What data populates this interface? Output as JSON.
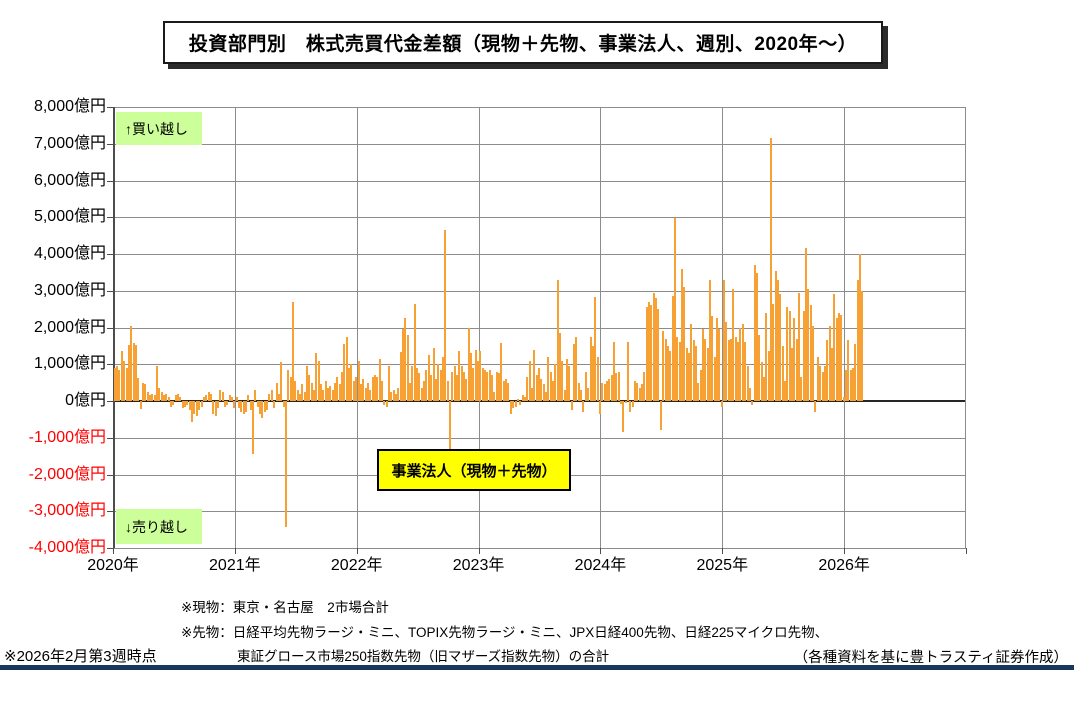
{
  "title": "投資部門別　株式売買代金差額（現物＋先物、事業法人、週別、2020年～）",
  "annotations": {
    "buy_label": "↑買い越し",
    "sell_label": "↓売り越し",
    "series_box_label": "事業法人（現物＋先物）"
  },
  "footnotes": {
    "note1": "※現物：東京・名古屋　2市場合計",
    "note2": "※先物：日経平均先物ラージ・ミニ、TOPIX先物ラージ・ミニ、JPX日経400先物、日経225マイクロ先物、",
    "note3": "東証グロース市場250指数先物（旧マザーズ指数先物）の合計",
    "as_of": "※2026年2月第3週時点",
    "credit": "（各種資料を基に豊トラスティ証券作成）"
  },
  "colors": {
    "bar": "#f7a134",
    "grid": "#8c8c8c",
    "zero_line": "#262626",
    "positive_tick": "#000000",
    "negative_tick": "#ff0000",
    "annotation_bg": "#ccff99",
    "series_box_bg": "#ffff00",
    "footer_rule": "#17375e"
  },
  "chart_data": {
    "type": "bar",
    "title": "投資部門別　株式売買代金差額（現物＋先物、事業法人、週別、2020年～）",
    "unit": "億円",
    "xlabel": "",
    "ylabel": "",
    "ylim": [
      -4000,
      8000
    ],
    "ytick_step": 1000,
    "grid": true,
    "ytick_labels": [
      "8,000億円",
      "7,000億円",
      "6,000億円",
      "5,000億円",
      "4,000億円",
      "3,000億円",
      "2,000億円",
      "1,000億円",
      "0億円",
      "-1,000億円",
      "-2,000億円",
      "-3,000億円",
      "-4,000億円"
    ],
    "x_year_labels": [
      "2020年",
      "2021年",
      "2022年",
      "2023年",
      "2024年",
      "2025年",
      "2026年"
    ],
    "weeks_per_year": 52,
    "series": [
      {
        "name": "事業法人（現物＋先物）",
        "values": [
          900,
          950,
          850,
          1350,
          1100,
          900,
          1520,
          2050,
          1590,
          1520,
          630,
          -230,
          500,
          460,
          250,
          150,
          200,
          150,
          950,
          350,
          250,
          150,
          200,
          100,
          -150,
          -100,
          150,
          200,
          100,
          -200,
          -150,
          -100,
          -250,
          -570,
          -350,
          -400,
          -250,
          -150,
          100,
          150,
          250,
          200,
          -350,
          -420,
          -200,
          300,
          250,
          -150,
          -100,
          150,
          100,
          -200,
          100,
          -200,
          -300,
          -350,
          -300,
          150,
          -250,
          -1450,
          300,
          -150,
          -350,
          -450,
          -300,
          -250,
          200,
          300,
          -200,
          500,
          200,
          1050,
          -150,
          -3430,
          850,
          650,
          2690,
          550,
          300,
          200,
          450,
          250,
          950,
          700,
          500,
          300,
          1300,
          1100,
          450,
          300,
          550,
          350,
          400,
          300,
          500,
          650,
          450,
          800,
          1550,
          1750,
          900,
          1000,
          550,
          650,
          1100,
          450,
          600,
          350,
          500,
          300,
          650,
          700,
          650,
          1150,
          550,
          -100,
          -150,
          950,
          250,
          300,
          200,
          350,
          1320,
          1950,
          2250,
          1800,
          500,
          950,
          2650,
          900,
          750,
          350,
          550,
          850,
          1250,
          700,
          1450,
          600,
          1000,
          850,
          1200,
          4650,
          550,
          -1350,
          800,
          950,
          700,
          1350,
          950,
          800,
          600,
          2000,
          1300,
          900,
          1400,
          1100,
          1350,
          900,
          850,
          800,
          850,
          700,
          250,
          800,
          750,
          1590,
          550,
          600,
          500,
          -350,
          -200,
          -150,
          50,
          -100,
          150,
          100,
          650,
          1100,
          350,
          1400,
          700,
          900,
          600,
          450,
          250,
          1200,
          800,
          550,
          1000,
          3300,
          1850,
          1100,
          300,
          1150,
          950,
          -250,
          1550,
          1750,
          500,
          300,
          -300,
          800,
          350,
          1750,
          1500,
          2830,
          1200,
          -350,
          500,
          450,
          550,
          600,
          700,
          1600,
          750,
          800,
          -80,
          -850,
          -50,
          1600,
          -300,
          -150,
          550,
          500,
          350,
          450,
          800,
          2550,
          2700,
          2600,
          2950,
          2800,
          2500,
          -800,
          1900,
          1700,
          1500,
          1350,
          2850,
          4980,
          1750,
          1600,
          3590,
          3100,
          1450,
          1300,
          2100,
          1650,
          1500,
          500,
          850,
          1950,
          1700,
          1450,
          3300,
          2300,
          1200,
          2250,
          1950,
          -150,
          3300,
          2150,
          1650,
          1700,
          3050,
          1750,
          1600,
          2000,
          2100,
          1600,
          950,
          350,
          -100,
          3700,
          3480,
          1800,
          1050,
          650,
          2400,
          1350,
          7150,
          2650,
          3550,
          3300,
          2900,
          1500,
          550,
          2550,
          2450,
          1450,
          2250,
          1700,
          2950,
          650,
          2450,
          4150,
          3050,
          2600,
          2050,
          -300,
          1200,
          950,
          800,
          950,
          1650,
          2050,
          1450,
          2900,
          2250,
          2400,
          2350,
          100,
          850,
          1650,
          850,
          900,
          1550,
          3300,
          4000,
          3000
        ]
      }
    ]
  }
}
